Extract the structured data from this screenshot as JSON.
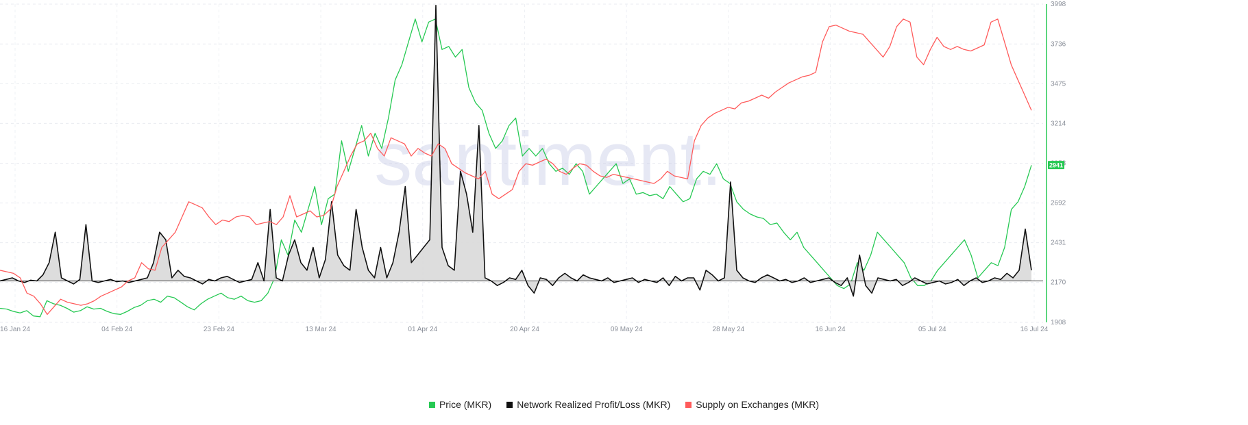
{
  "watermark": "santiment.",
  "legend": [
    {
      "label": "Price (MKR)",
      "color": "#26c953"
    },
    {
      "label": "Network Realized Profit/Loss (MKR)",
      "color": "#111111"
    },
    {
      "label": "Supply on Exchanges (MKR)",
      "color": "#ff5b5b"
    }
  ],
  "chart_data": {
    "type": "line",
    "x_ticks": [
      "16 Jan 24",
      "04 Feb 24",
      "23 Feb 24",
      "13 Mar 24",
      "01 Apr 24",
      "20 Apr 24",
      "09 May 24",
      "28 May 24",
      "16 Jun 24",
      "05 Jul 24",
      "16 Jul 24"
    ],
    "y_right_ticks": [
      3998,
      3736,
      3475,
      3214,
      2953,
      2692,
      2431,
      2170,
      1908
    ],
    "ylim": [
      1908,
      3998
    ],
    "price_badge": "2941",
    "grid": true,
    "series": [
      {
        "name": "Price (MKR)",
        "color": "#26c953",
        "values": [
          2000,
          1995,
          1980,
          1970,
          1985,
          1950,
          1945,
          2050,
          2030,
          2020,
          2000,
          1975,
          1985,
          2010,
          1995,
          2000,
          1980,
          1965,
          1960,
          1980,
          2005,
          2020,
          2050,
          2060,
          2040,
          2080,
          2070,
          2040,
          2010,
          1990,
          2030,
          2060,
          2080,
          2100,
          2070,
          2060,
          2080,
          2050,
          2040,
          2050,
          2100,
          2200,
          2450,
          2350,
          2580,
          2500,
          2650,
          2800,
          2550,
          2720,
          2750,
          3100,
          2900,
          3050,
          3200,
          3000,
          3150,
          3050,
          3250,
          3500,
          3600,
          3750,
          3900,
          3750,
          3880,
          3900,
          3700,
          3720,
          3650,
          3700,
          3450,
          3350,
          3300,
          3150,
          3050,
          3100,
          3200,
          3250,
          3000,
          3050,
          3000,
          3050,
          2950,
          2900,
          2920,
          2880,
          2950,
          2900,
          2750,
          2800,
          2850,
          2900,
          2950,
          2820,
          2850,
          2750,
          2760,
          2740,
          2750,
          2720,
          2800,
          2750,
          2700,
          2720,
          2850,
          2900,
          2880,
          2950,
          2850,
          2820,
          2700,
          2650,
          2620,
          2600,
          2590,
          2550,
          2560,
          2500,
          2450,
          2500,
          2400,
          2350,
          2300,
          2250,
          2200,
          2150,
          2130,
          2160,
          2300,
          2250,
          2350,
          2500,
          2450,
          2400,
          2350,
          2300,
          2200,
          2150,
          2150,
          2180,
          2250,
          2300,
          2350,
          2400,
          2450,
          2350,
          2200,
          2250,
          2300,
          2280,
          2400,
          2650,
          2700,
          2800,
          2940
        ]
      },
      {
        "name": "Network Realized Profit/Loss (MKR)",
        "color": "#111111",
        "values": [
          2180,
          2190,
          2200,
          2180,
          2170,
          2185,
          2180,
          2220,
          2300,
          2500,
          2200,
          2180,
          2160,
          2190,
          2550,
          2180,
          2170,
          2180,
          2190,
          2175,
          2180,
          2170,
          2180,
          2190,
          2200,
          2300,
          2500,
          2450,
          2200,
          2250,
          2210,
          2200,
          2180,
          2160,
          2190,
          2180,
          2200,
          2210,
          2190,
          2170,
          2180,
          2190,
          2300,
          2180,
          2650,
          2200,
          2180,
          2350,
          2450,
          2300,
          2250,
          2400,
          2200,
          2320,
          2700,
          2350,
          2280,
          2250,
          2650,
          2400,
          2250,
          2200,
          2400,
          2200,
          2300,
          2500,
          2800,
          2300,
          2350,
          2400,
          2450,
          3990,
          2400,
          2280,
          2250,
          2900,
          2750,
          2500,
          3200,
          2200,
          2180,
          2150,
          2170,
          2200,
          2190,
          2250,
          2150,
          2100,
          2200,
          2190,
          2150,
          2200,
          2230,
          2200,
          2180,
          2220,
          2200,
          2190,
          2180,
          2200,
          2170,
          2180,
          2190,
          2200,
          2170,
          2190,
          2180,
          2170,
          2200,
          2150,
          2210,
          2180,
          2200,
          2200,
          2120,
          2250,
          2220,
          2180,
          2200,
          2830,
          2250,
          2200,
          2180,
          2170,
          2200,
          2220,
          2200,
          2180,
          2190,
          2170,
          2180,
          2200,
          2170,
          2180,
          2190,
          2200,
          2170,
          2150,
          2200,
          2080,
          2350,
          2150,
          2100,
          2200,
          2190,
          2180,
          2190,
          2150,
          2170,
          2200,
          2180,
          2160,
          2170,
          2180,
          2160,
          2170,
          2190,
          2150,
          2180,
          2200,
          2170,
          2180,
          2200,
          2190,
          2230,
          2200,
          2250,
          2520,
          2250
        ]
      },
      {
        "name": "Supply on Exchanges (MKR)",
        "color": "#ff5b5b",
        "values": [
          2250,
          2240,
          2230,
          2200,
          2100,
          2080,
          2030,
          1960,
          2010,
          2060,
          2040,
          2030,
          2020,
          2030,
          2050,
          2080,
          2100,
          2120,
          2140,
          2180,
          2200,
          2300,
          2260,
          2250,
          2400,
          2450,
          2500,
          2600,
          2700,
          2680,
          2660,
          2600,
          2550,
          2580,
          2570,
          2600,
          2610,
          2600,
          2550,
          2560,
          2570,
          2550,
          2600,
          2740,
          2600,
          2620,
          2640,
          2600,
          2610,
          2650,
          2800,
          2900,
          3000,
          3080,
          3100,
          3150,
          3050,
          3000,
          3120,
          3100,
          3080,
          3000,
          3050,
          3020,
          3000,
          3080,
          3050,
          2950,
          2920,
          2890,
          2870,
          2850,
          2900,
          2750,
          2720,
          2750,
          2780,
          2900,
          2950,
          2940,
          2960,
          2980,
          2950,
          2900,
          2880,
          2920,
          2950,
          2940,
          2900,
          2870,
          2860,
          2880,
          2870,
          2860,
          2850,
          2840,
          2830,
          2820,
          2850,
          2900,
          2870,
          2860,
          2850,
          3100,
          3200,
          3250,
          3280,
          3300,
          3320,
          3310,
          3350,
          3360,
          3380,
          3400,
          3380,
          3420,
          3450,
          3480,
          3500,
          3520,
          3530,
          3550,
          3750,
          3850,
          3860,
          3840,
          3820,
          3810,
          3800,
          3750,
          3700,
          3650,
          3720,
          3850,
          3900,
          3880,
          3650,
          3600,
          3700,
          3780,
          3720,
          3700,
          3720,
          3700,
          3690,
          3710,
          3730,
          3880,
          3900,
          3750,
          3600,
          3500,
          3400,
          3300
        ]
      }
    ]
  }
}
